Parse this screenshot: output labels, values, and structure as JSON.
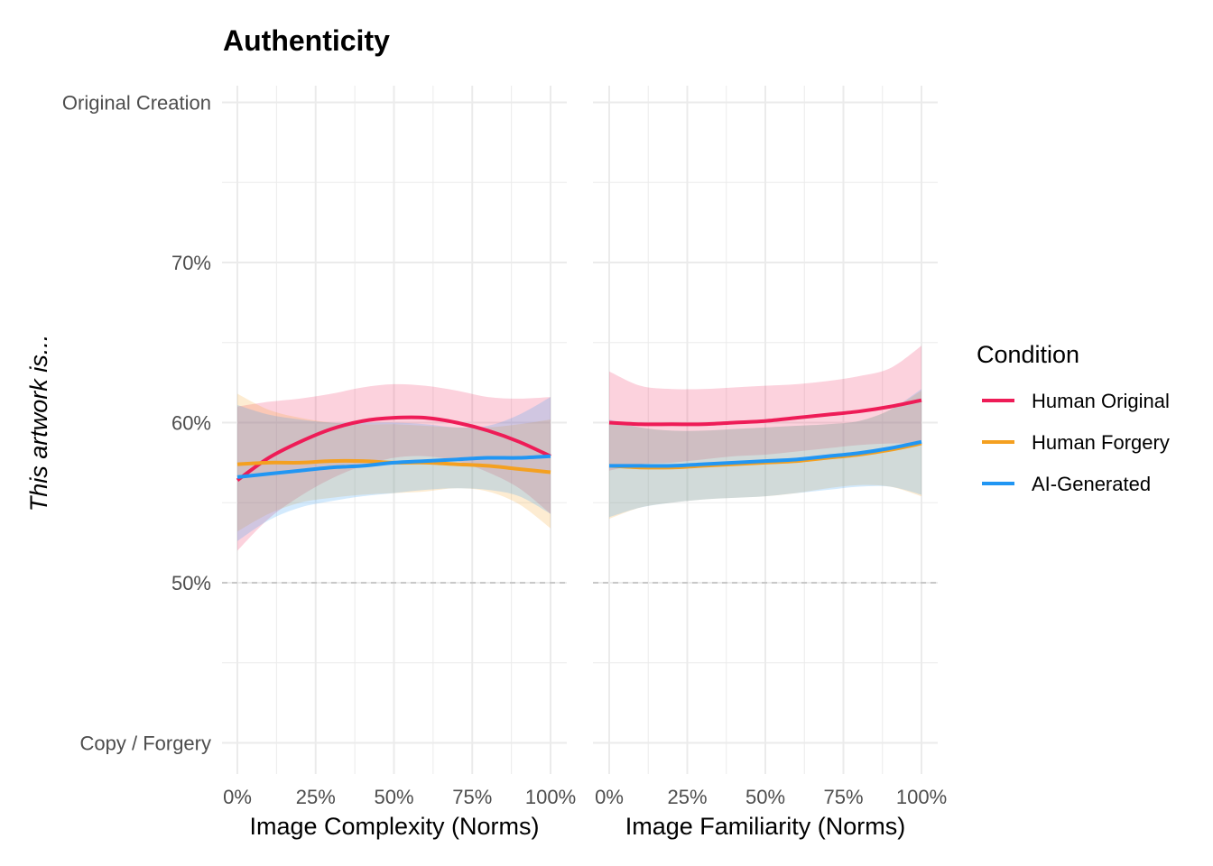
{
  "chart_data": {
    "type": "line",
    "title": "Authenticity",
    "ylabel": "This artwork is...",
    "ylim": [
      38,
      82
    ],
    "y_ticks": [
      {
        "value": 40,
        "label": "Copy / Forgery"
      },
      {
        "value": 50,
        "label": "50%"
      },
      {
        "value": 60,
        "label": "60%"
      },
      {
        "value": 70,
        "label": "70%"
      },
      {
        "value": 80,
        "label": "Original Creation"
      }
    ],
    "reference_line": {
      "value": 50,
      "style": "dashed"
    },
    "grid": true,
    "legend": {
      "title": "Condition",
      "position": "right",
      "entries": [
        {
          "name": "Human Original",
          "color": "#ee1c57"
        },
        {
          "name": "Human Forgery",
          "color": "#f4a020"
        },
        {
          "name": "AI-Generated",
          "color": "#2196f3"
        }
      ]
    },
    "x": [
      0,
      10,
      20,
      30,
      40,
      50,
      60,
      70,
      80,
      90,
      100
    ],
    "panels": [
      {
        "xlabel": "Image Complexity (Norms)",
        "xlim": [
          -5,
          105
        ],
        "x_ticks": [
          "0%",
          "25%",
          "50%",
          "75%",
          "100%"
        ],
        "series": [
          {
            "name": "Human Original",
            "values": [
              56.4,
              57.8,
              58.8,
              59.6,
              60.1,
              60.3,
              60.3,
              60.0,
              59.5,
              58.8,
              57.9
            ],
            "ci_low": [
              52.0,
              54.0,
              55.4,
              56.5,
              57.3,
              57.8,
              57.9,
              57.6,
              56.9,
              55.9,
              54.3
            ],
            "ci_high": [
              61.0,
              61.3,
              61.5,
              61.8,
              62.2,
              62.4,
              62.3,
              62.0,
              61.6,
              61.5,
              61.6
            ]
          },
          {
            "name": "Human Forgery",
            "values": [
              57.4,
              57.5,
              57.5,
              57.6,
              57.6,
              57.5,
              57.5,
              57.4,
              57.3,
              57.1,
              56.9
            ],
            "ci_low": [
              53.2,
              54.3,
              55.0,
              55.3,
              55.5,
              55.6,
              55.7,
              55.9,
              55.7,
              54.9,
              53.4
            ],
            "ci_high": [
              61.8,
              60.8,
              60.3,
              60.0,
              59.9,
              59.9,
              59.8,
              59.7,
              59.7,
              59.9,
              60.2
            ]
          },
          {
            "name": "AI-Generated",
            "values": [
              56.6,
              56.8,
              57.0,
              57.2,
              57.3,
              57.5,
              57.6,
              57.7,
              57.8,
              57.8,
              57.9
            ],
            "ci_low": [
              52.6,
              53.9,
              54.7,
              55.1,
              55.4,
              55.6,
              55.8,
              55.9,
              55.8,
              55.4,
              54.3
            ],
            "ci_high": [
              61.1,
              60.5,
              60.2,
              60.0,
              60.0,
              60.0,
              59.9,
              59.7,
              59.8,
              60.5,
              61.6
            ]
          }
        ]
      },
      {
        "xlabel": "Image Familiarity (Norms)",
        "xlim": [
          -5,
          105
        ],
        "x_ticks": [
          "0%",
          "25%",
          "50%",
          "75%",
          "100%"
        ],
        "series": [
          {
            "name": "Human Original",
            "values": [
              60.0,
              59.9,
              59.9,
              59.9,
              60.0,
              60.1,
              60.3,
              60.5,
              60.7,
              61.0,
              61.4
            ],
            "ci_low": [
              57.0,
              57.4,
              57.5,
              57.7,
              57.9,
              58.0,
              58.2,
              58.4,
              58.6,
              58.7,
              58.7
            ],
            "ci_high": [
              63.2,
              62.3,
              62.1,
              62.1,
              62.2,
              62.3,
              62.4,
              62.6,
              62.9,
              63.4,
              64.8
            ]
          },
          {
            "name": "Human Forgery",
            "values": [
              57.3,
              57.2,
              57.2,
              57.3,
              57.4,
              57.5,
              57.6,
              57.8,
              58.0,
              58.3,
              58.7
            ],
            "ci_low": [
              54.0,
              54.7,
              55.0,
              55.2,
              55.3,
              55.4,
              55.6,
              55.9,
              56.1,
              56.0,
              55.4
            ],
            "ci_high": [
              60.1,
              59.7,
              59.5,
              59.5,
              59.6,
              59.7,
              59.8,
              59.9,
              60.1,
              60.8,
              62.0
            ]
          },
          {
            "name": "AI-Generated",
            "values": [
              57.3,
              57.3,
              57.3,
              57.4,
              57.5,
              57.6,
              57.7,
              57.9,
              58.1,
              58.4,
              58.8
            ],
            "ci_low": [
              54.1,
              54.7,
              55.0,
              55.2,
              55.3,
              55.4,
              55.6,
              55.8,
              56.0,
              56.0,
              55.5
            ],
            "ci_high": [
              60.2,
              59.7,
              59.5,
              59.5,
              59.6,
              59.7,
              59.8,
              59.9,
              60.1,
              60.8,
              62.1
            ]
          }
        ]
      }
    ]
  }
}
